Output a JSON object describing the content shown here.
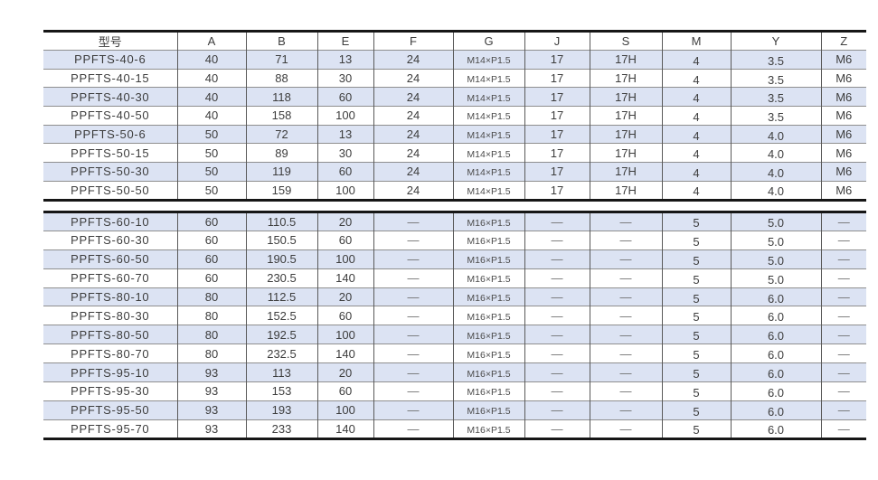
{
  "page": {
    "background": "#ffffff"
  },
  "table": {
    "columns": [
      "型号",
      "A",
      "B",
      "E",
      "F",
      "G",
      "J",
      "S",
      "M",
      "Y",
      "Z"
    ],
    "colors": {
      "row_shade": "#dce3f3",
      "thick_border": "#161616",
      "row_line": "#8f8f8f",
      "column_line": "#5a5a5a",
      "text": "#3d3d3d",
      "dash_text": "#6f6f6f"
    },
    "empty_cell_symbol": "—",
    "sections": [
      {
        "rows": [
          [
            "PPFTS-40-6",
            "40",
            "71",
            "13",
            "24",
            "M14×P1.5",
            "17",
            "17H",
            "4",
            "3.5",
            "M6"
          ],
          [
            "PPFTS-40-15",
            "40",
            "88",
            "30",
            "24",
            "M14×P1.5",
            "17",
            "17H",
            "4",
            "3.5",
            "M6"
          ],
          [
            "PPFTS-40-30",
            "40",
            "118",
            "60",
            "24",
            "M14×P1.5",
            "17",
            "17H",
            "4",
            "3.5",
            "M6"
          ],
          [
            "PPFTS-40-50",
            "40",
            "158",
            "100",
            "24",
            "M14×P1.5",
            "17",
            "17H",
            "4",
            "3.5",
            "M6"
          ],
          [
            "PPFTS-50-6",
            "50",
            "72",
            "13",
            "24",
            "M14×P1.5",
            "17",
            "17H",
            "4",
            "4.0",
            "M6"
          ],
          [
            "PPFTS-50-15",
            "50",
            "89",
            "30",
            "24",
            "M14×P1.5",
            "17",
            "17H",
            "4",
            "4.0",
            "M6"
          ],
          [
            "PPFTS-50-30",
            "50",
            "119",
            "60",
            "24",
            "M14×P1.5",
            "17",
            "17H",
            "4",
            "4.0",
            "M6"
          ],
          [
            "PPFTS-50-50",
            "50",
            "159",
            "100",
            "24",
            "M14×P1.5",
            "17",
            "17H",
            "4",
            "4.0",
            "M6"
          ]
        ]
      },
      {
        "rows": [
          [
            "PPFTS-60-10",
            "60",
            "110.5",
            "20",
            "—",
            "M16×P1.5",
            "—",
            "—",
            "5",
            "5.0",
            "—"
          ],
          [
            "PPFTS-60-30",
            "60",
            "150.5",
            "60",
            "—",
            "M16×P1.5",
            "—",
            "—",
            "5",
            "5.0",
            "—"
          ],
          [
            "PPFTS-60-50",
            "60",
            "190.5",
            "100",
            "—",
            "M16×P1.5",
            "—",
            "—",
            "5",
            "5.0",
            "—"
          ],
          [
            "PPFTS-60-70",
            "60",
            "230.5",
            "140",
            "—",
            "M16×P1.5",
            "—",
            "—",
            "5",
            "5.0",
            "—"
          ],
          [
            "PPFTS-80-10",
            "80",
            "112.5",
            "20",
            "—",
            "M16×P1.5",
            "—",
            "—",
            "5",
            "6.0",
            "—"
          ],
          [
            "PPFTS-80-30",
            "80",
            "152.5",
            "60",
            "—",
            "M16×P1.5",
            "—",
            "—",
            "5",
            "6.0",
            "—"
          ],
          [
            "PPFTS-80-50",
            "80",
            "192.5",
            "100",
            "—",
            "M16×P1.5",
            "—",
            "—",
            "5",
            "6.0",
            "—"
          ],
          [
            "PPFTS-80-70",
            "80",
            "232.5",
            "140",
            "—",
            "M16×P1.5",
            "—",
            "—",
            "5",
            "6.0",
            "—"
          ],
          [
            "PPFTS-95-10",
            "93",
            "113",
            "20",
            "—",
            "M16×P1.5",
            "—",
            "—",
            "5",
            "6.0",
            "—"
          ],
          [
            "PPFTS-95-30",
            "93",
            "153",
            "60",
            "—",
            "M16×P1.5",
            "—",
            "—",
            "5",
            "6.0",
            "—"
          ],
          [
            "PPFTS-95-50",
            "93",
            "193",
            "100",
            "—",
            "M16×P1.5",
            "—",
            "—",
            "5",
            "6.0",
            "—"
          ],
          [
            "PPFTS-95-70",
            "93",
            "233",
            "140",
            "—",
            "M16×P1.5",
            "—",
            "—",
            "5",
            "6.0",
            "—"
          ]
        ]
      }
    ]
  }
}
